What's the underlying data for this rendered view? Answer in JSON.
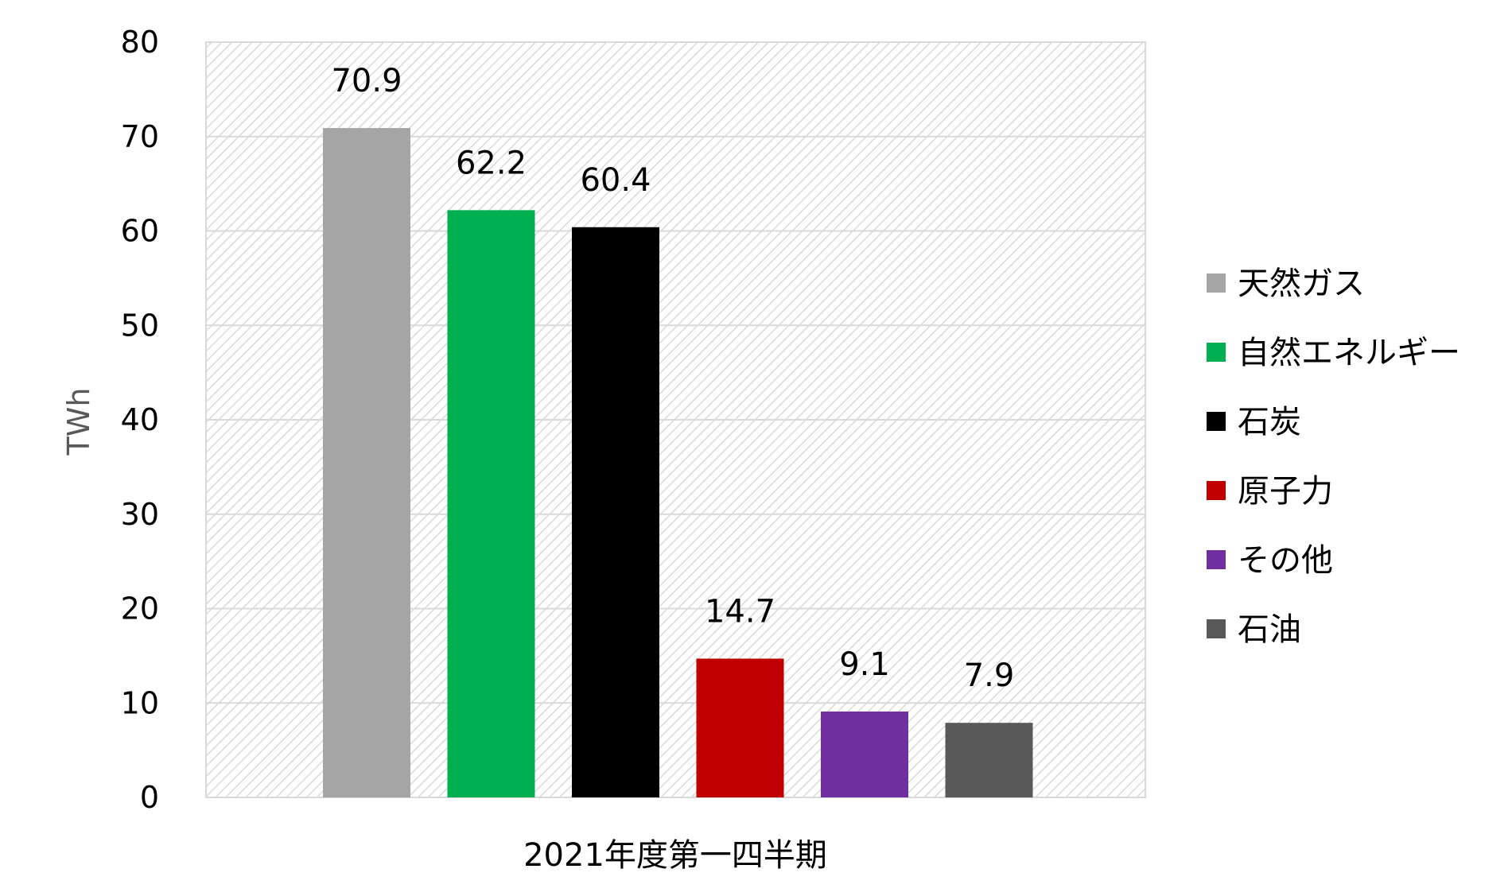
{
  "chart_data": {
    "type": "bar",
    "categories": [
      "2021年度第一四半期"
    ],
    "ylabel": "TWh",
    "ylim": [
      0,
      80
    ],
    "yticks": [
      0,
      10,
      20,
      30,
      40,
      50,
      60,
      70,
      80
    ],
    "grid": true,
    "legend_position": "right",
    "series": [
      {
        "name": "天然ガス",
        "values": [
          70.9
        ],
        "label": "70.9",
        "color": "#a5a5a5"
      },
      {
        "name": "自然エネルギー",
        "values": [
          62.2
        ],
        "label": "62.2",
        "color": "#00b050"
      },
      {
        "name": "石炭",
        "values": [
          60.4
        ],
        "label": "60.4",
        "color": "#000000"
      },
      {
        "name": "原子力",
        "values": [
          14.7
        ],
        "label": "14.7",
        "color": "#c00000"
      },
      {
        "name": "その他",
        "values": [
          9.1
        ],
        "label": "9.1",
        "color": "#7030a0"
      },
      {
        "name": "石油",
        "values": [
          7.9
        ],
        "label": "7.9",
        "color": "#595959"
      }
    ]
  }
}
